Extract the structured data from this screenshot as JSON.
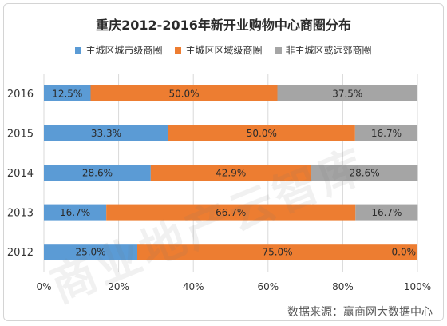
{
  "chart_data": {
    "type": "bar",
    "orientation": "horizontal",
    "stacked": true,
    "title": "重庆2012-2016年新开业购物中心商圈分布",
    "categories": [
      "2016",
      "2015",
      "2014",
      "2013",
      "2012"
    ],
    "series": [
      {
        "name": "主城区城市级商圈",
        "color": "#5b9bd5",
        "values": [
          12.5,
          33.3,
          28.6,
          16.7,
          25.0
        ],
        "labels": [
          "12.5%",
          "33.3%",
          "28.6%",
          "16.7%",
          "25.0%"
        ]
      },
      {
        "name": "主城区区域级商圈",
        "color": "#ed7d31",
        "values": [
          50.0,
          50.0,
          42.9,
          66.7,
          75.0
        ],
        "labels": [
          "50.0%",
          "50.0%",
          "42.9%",
          "66.7%",
          "75.0%"
        ]
      },
      {
        "name": "非主城区或远郊商圈",
        "color": "#a5a5a5",
        "values": [
          37.5,
          16.7,
          28.6,
          16.7,
          0.0
        ],
        "labels": [
          "37.5%",
          "16.7%",
          "28.6%",
          "16.7%",
          "0.0%"
        ]
      }
    ],
    "xlim": [
      0,
      100
    ],
    "xticks": [
      "0%",
      "20%",
      "40%",
      "60%",
      "80%",
      "100%"
    ],
    "legend_position": "top",
    "grid": true
  },
  "watermark": "商业地产云智库",
  "source_note": "数据来源：赢商网大数据中心"
}
